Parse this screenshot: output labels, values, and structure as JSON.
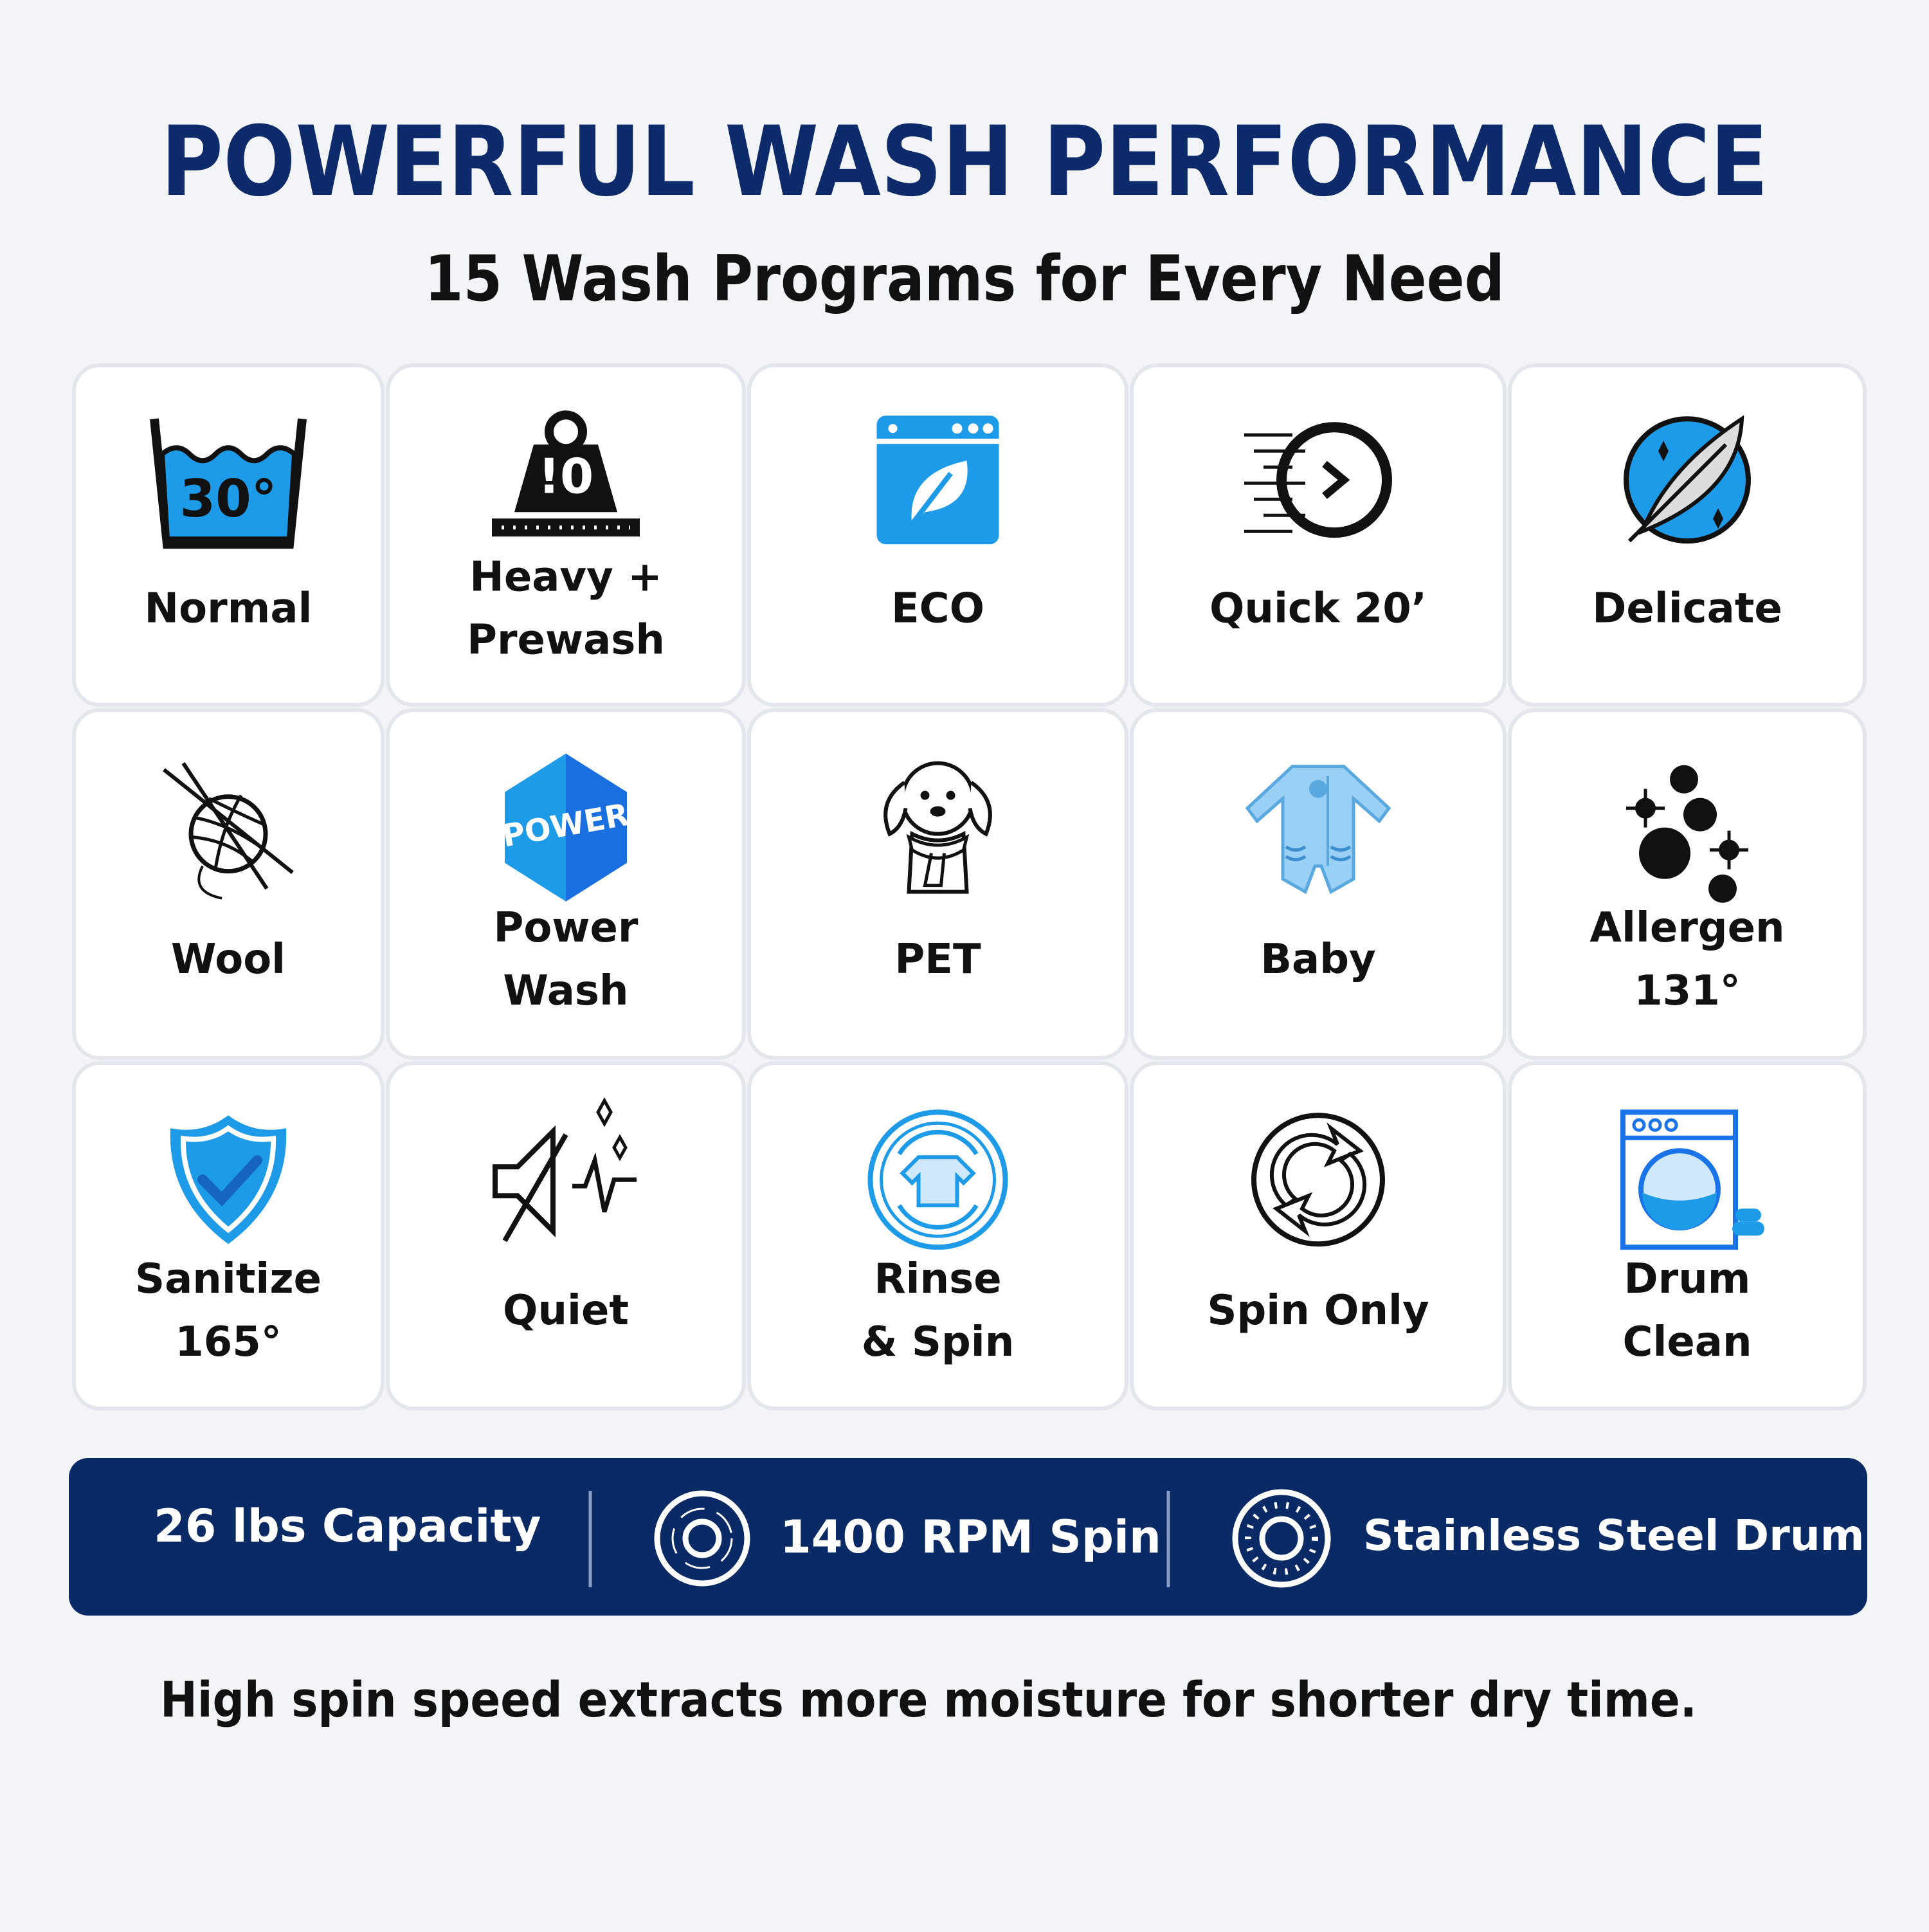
{
  "header": {
    "title": "POWERFUL WASH PERFORMANCE",
    "subtitle": "15 Wash Programs for Every Need"
  },
  "programs": [
    {
      "label": [
        "Normal"
      ],
      "icon_text": "30°"
    },
    {
      "label": [
        "Heavy +",
        "Prewash"
      ],
      "icon_text": "!0"
    },
    {
      "label": [
        "ECO"
      ]
    },
    {
      "label": [
        "Quick 20’"
      ]
    },
    {
      "label": [
        "Delicate"
      ]
    },
    {
      "label": [
        "Wool"
      ]
    },
    {
      "label": [
        "Power",
        "Wash"
      ],
      "icon_text": "POWER"
    },
    {
      "label": [
        "PET"
      ]
    },
    {
      "label": [
        "Baby"
      ]
    },
    {
      "label": [
        "Allergen",
        "131°"
      ]
    },
    {
      "label": [
        "Sanitize",
        "165°"
      ]
    },
    {
      "label": [
        "Quiet"
      ]
    },
    {
      "label": [
        "Rinse",
        "& Spin"
      ]
    },
    {
      "label": [
        "Spin Only"
      ]
    },
    {
      "label": [
        "Drum",
        "Clean"
      ]
    }
  ],
  "features": [
    "26 lbs Capacity",
    "1400 RPM Spin",
    "Stainless Steel Drum"
  ],
  "note": "High spin speed extracts more moisture for shorter dry time."
}
